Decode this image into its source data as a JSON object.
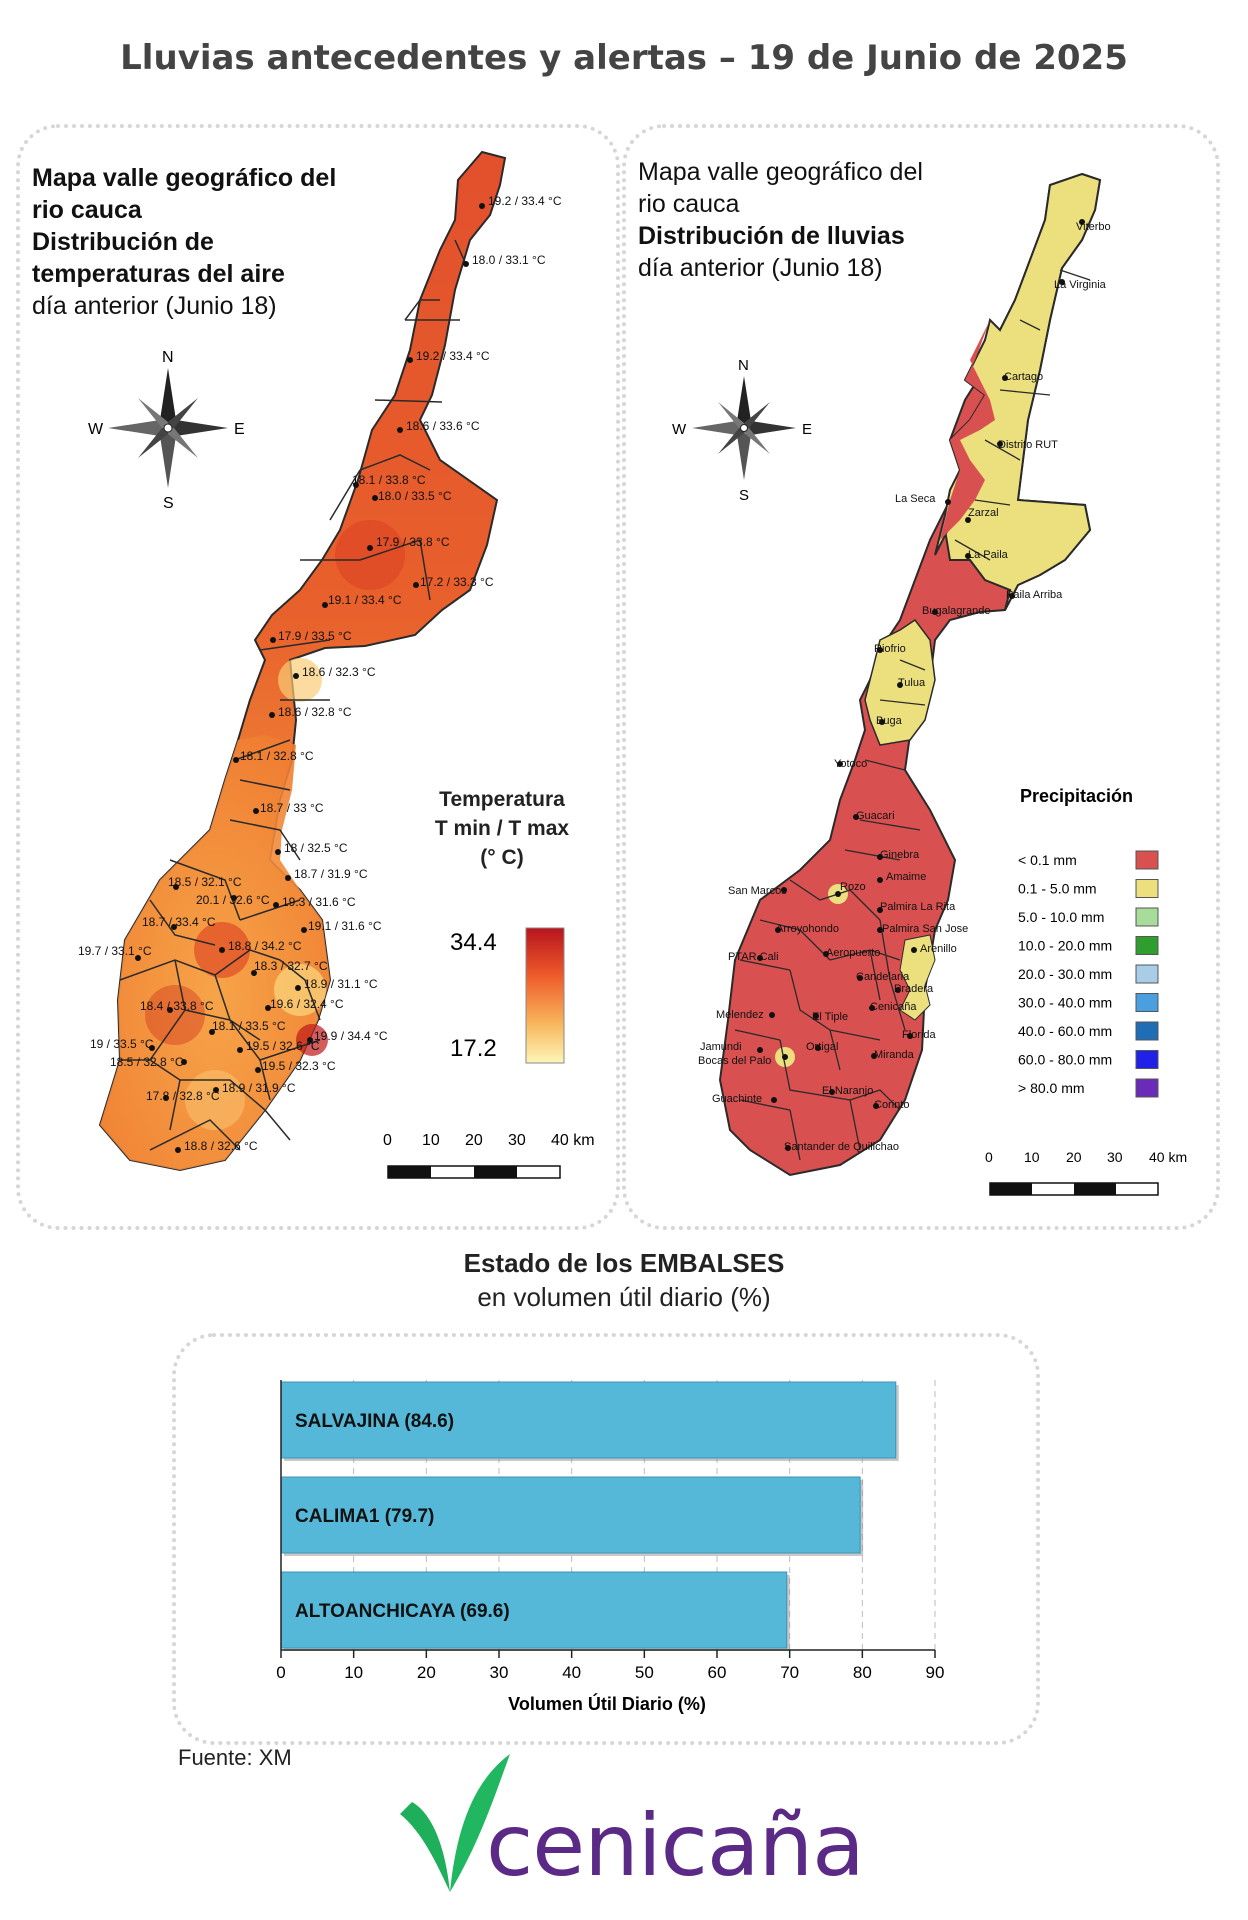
{
  "title": "Lluvias antecedentes y alertas – 19 de Junio de 2025",
  "temp_map": {
    "heading_line1": "Mapa valle geográfico del",
    "heading_line2": "rio cauca",
    "heading_line3": "Distribución de",
    "heading_line4": "temperaturas del aire",
    "heading_line5": "día anterior (Junio 18)",
    "compass": {
      "n": "N",
      "s": "S",
      "e": "E",
      "w": "W"
    },
    "legend_title_1": "Temperatura",
    "legend_title_2": "T min / T max",
    "legend_title_3": "(° C)",
    "legend_max": "34.4",
    "legend_min": "17.2",
    "scale_labels": [
      "0",
      "10",
      "20",
      "30",
      "40 km"
    ],
    "stations": [
      "19.2 / 33.4 °C",
      "18.0 / 33.1 °C",
      "19.2 / 33.4 °C",
      "18.6 / 33.6 °C",
      "18.1 / 33.8 °C",
      "18.0 / 33.5 °C",
      "17.9 / 33.8 °C",
      "17.2 / 33.3 °C",
      "19.1 / 33.4 °C",
      "17.9 / 33.5 °C",
      "18.6 / 32.3 °C",
      "18.6 / 32.8 °C",
      "18.1 / 32.8 °C",
      "18.7 / 33 °C",
      "18 / 32.5 °C",
      "18.5 / 32.1 °C",
      "18.7 / 31.9 °C",
      "20.1 / 32.6 °C",
      "19.3 / 31.6 °C",
      "18.7 / 33.4 °C",
      "19.1 / 31.6 °C",
      "18.8 / 34.2 °C",
      "19.7 / 33.1 °C",
      "18.3 / 32.7 °C",
      "18.9 / 31.1 °C",
      "18.4 / 33.8 °C",
      "19.6 / 32.4 °C",
      "18.1 / 33.5 °C",
      "19.9 / 34.4 °C",
      "19 / 33.5 °C",
      "19.5 / 32.6 °C",
      "18.5 / 32.8 °C",
      "19.5 / 32.3 °C",
      "17.8 / 32.8 °C",
      "18.9 / 31.9 °C",
      "18.8 / 32.6 °C"
    ]
  },
  "rain_map": {
    "heading_line1": "Mapa valle geográfico del",
    "heading_line2": "rio cauca",
    "heading_line3": "Distribución de lluvias",
    "heading_line4": "día anterior (Junio 18)",
    "compass": {
      "n": "N",
      "s": "S",
      "e": "E",
      "w": "W"
    },
    "legend_title": "Precipitación",
    "legend_items": [
      {
        "label": "< 0.1 mm",
        "color": "#d95050"
      },
      {
        "label": "0.1 - 5.0 mm",
        "color": "#ece07e"
      },
      {
        "label": "5.0 - 10.0 mm",
        "color": "#a8dc9a"
      },
      {
        "label": "10.0 - 20.0 mm",
        "color": "#2e9e2e"
      },
      {
        "label": "20.0 - 30.0 mm",
        "color": "#a9cde6"
      },
      {
        "label": "30.0 - 40.0 mm",
        "color": "#4aa0de"
      },
      {
        "label": "40.0 - 60.0 mm",
        "color": "#1f6db4"
      },
      {
        "label": "60.0 - 80.0 mm",
        "color": "#2020e8"
      },
      {
        "label": "> 80.0 mm",
        "color": "#6a2bb8"
      }
    ],
    "scale_labels": [
      "0",
      "10",
      "20",
      "30",
      "40 km"
    ],
    "places": [
      "Viterbo",
      "La Virginia",
      "Cartago",
      "Distrito RUT",
      "La Seca",
      "Zarzal",
      "La Paila",
      "Paila Arriba",
      "Bugalagrande",
      "Riofrio",
      "Tulua",
      "Buga",
      "Yotoco",
      "Guacari",
      "Ginebra",
      "San Marcos",
      "Rozo",
      "Amaime",
      "Palmira La Rita",
      "Arroyohondo",
      "Palmira San Jose",
      "Aeropuerto",
      "Arenillo",
      "PTAR Cali",
      "Candelaria",
      "Pradera",
      "Cenicaña",
      "Melendez",
      "El Tiple",
      "Florida",
      "Jamundi",
      "Bocas del Palo",
      "Ortigal",
      "Miranda",
      "El Naranjo",
      "Guachinte",
      "Corinto",
      "Santander de Quilichao"
    ]
  },
  "reservoirs": {
    "title": "Estado de los EMBALSES",
    "subtitle": "en volumen útil diario (%)",
    "source": "Fuente: XM"
  },
  "chart_data": {
    "type": "bar",
    "orientation": "horizontal",
    "categories": [
      "SALVAJINA",
      "CALIMA1",
      "ALTOANCHICAYA"
    ],
    "bar_labels": [
      "SALVAJINA (84.6)",
      "CALIMA1 (79.7)",
      "ALTOANCHICAYA (69.6)"
    ],
    "values": [
      84.6,
      79.7,
      69.6
    ],
    "xlabel": "Volumen Útil Diario (%)",
    "xlim": [
      0,
      90
    ],
    "xticks": [
      "0",
      "10",
      "20",
      "30",
      "40",
      "50",
      "60",
      "70",
      "80",
      "90"
    ],
    "bar_color": "#56b8d8",
    "grid": "vertical dashed"
  },
  "logo": {
    "word": "cenicaña",
    "color": "#5b2a86",
    "mark_color": "#1fae5a"
  }
}
